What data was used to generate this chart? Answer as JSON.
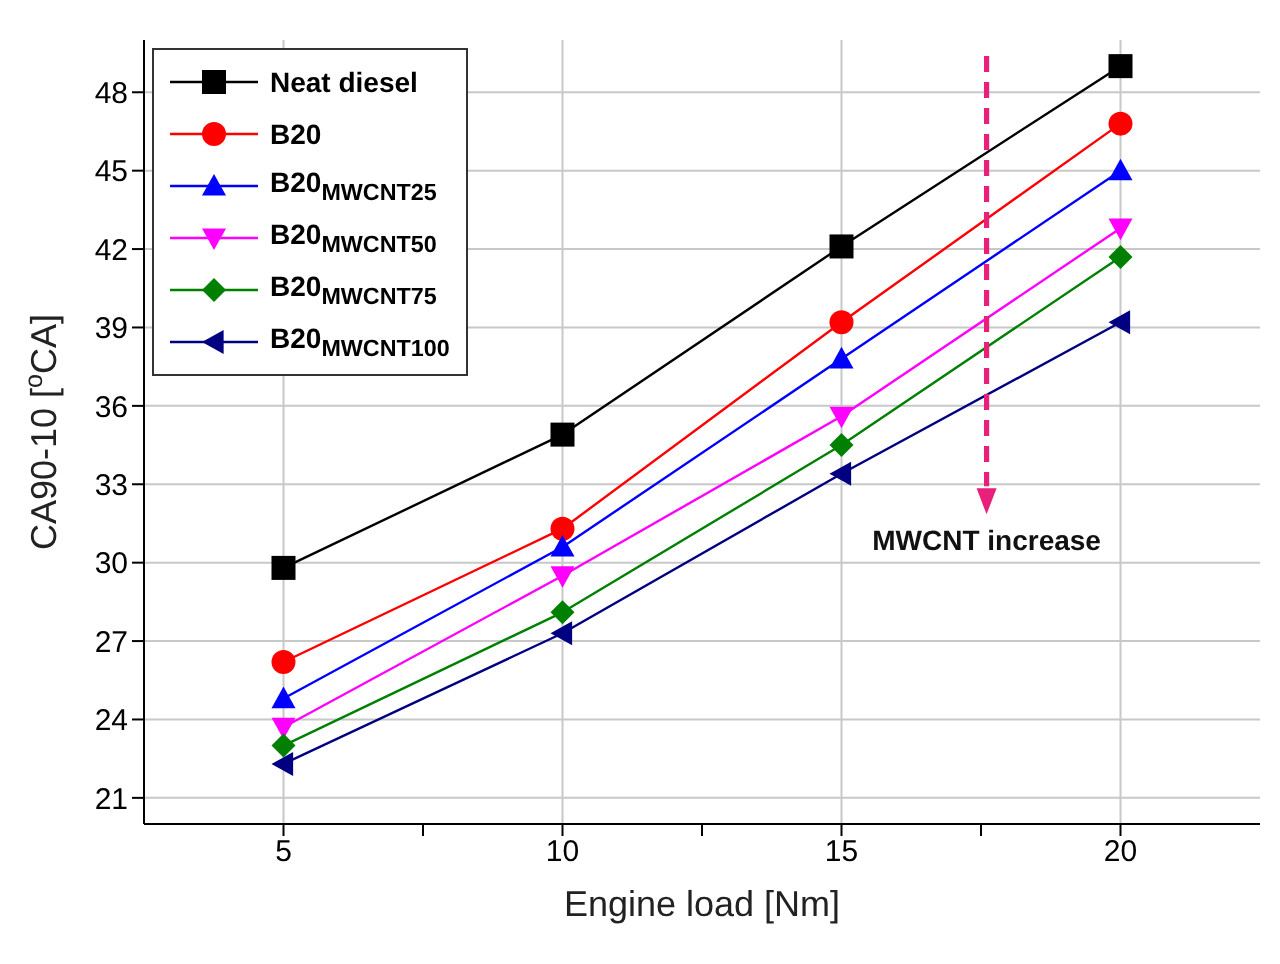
{
  "chart_data": {
    "type": "line",
    "xlabel": "Engine load [Nm]",
    "ylabel": "CA90-10 [$^{o}$CA]",
    "x": [
      5,
      10,
      15,
      20
    ],
    "series": [
      {
        "name": "Neat diesel",
        "color": "#000000",
        "marker": "square",
        "values": [
          29.8,
          34.9,
          42.1,
          49.0
        ]
      },
      {
        "name": "B20",
        "color": "#ff0000",
        "marker": "circle",
        "values": [
          26.2,
          31.3,
          39.2,
          46.8
        ]
      },
      {
        "name": "B20$_{MWCNT25}$",
        "color": "#0000ff",
        "marker": "triangle",
        "values": [
          24.8,
          30.6,
          37.8,
          45.0
        ]
      },
      {
        "name": "B20$_{MWCNT50}$",
        "color": "#ff00ff",
        "marker": "triangle-down",
        "values": [
          23.7,
          29.5,
          35.6,
          42.8
        ]
      },
      {
        "name": "B20$_{MWCNT75}$",
        "color": "#008000",
        "marker": "diamond",
        "values": [
          23.0,
          28.1,
          34.5,
          41.7
        ]
      },
      {
        "name": "B20$_{MWCNT100}$",
        "color": "#000080",
        "marker": "triangle-left",
        "values": [
          22.3,
          27.3,
          33.4,
          39.2
        ]
      }
    ],
    "xlim": [
      2.5,
      22.5
    ],
    "xticks": [
      5,
      {
        "value": 7.5,
        "label": null
      },
      10,
      {
        "value": 12.5,
        "label": null
      },
      15,
      {
        "value": 17.5,
        "label": null
      },
      20
    ],
    "ylim": [
      20,
      50
    ],
    "yticks": [
      21,
      24,
      27,
      30,
      33,
      36,
      39,
      42,
      45,
      48
    ],
    "grid": true,
    "legend": "top left",
    "line_style": "solid",
    "annotations": [
      "MWCNT increase"
    ]
  }
}
